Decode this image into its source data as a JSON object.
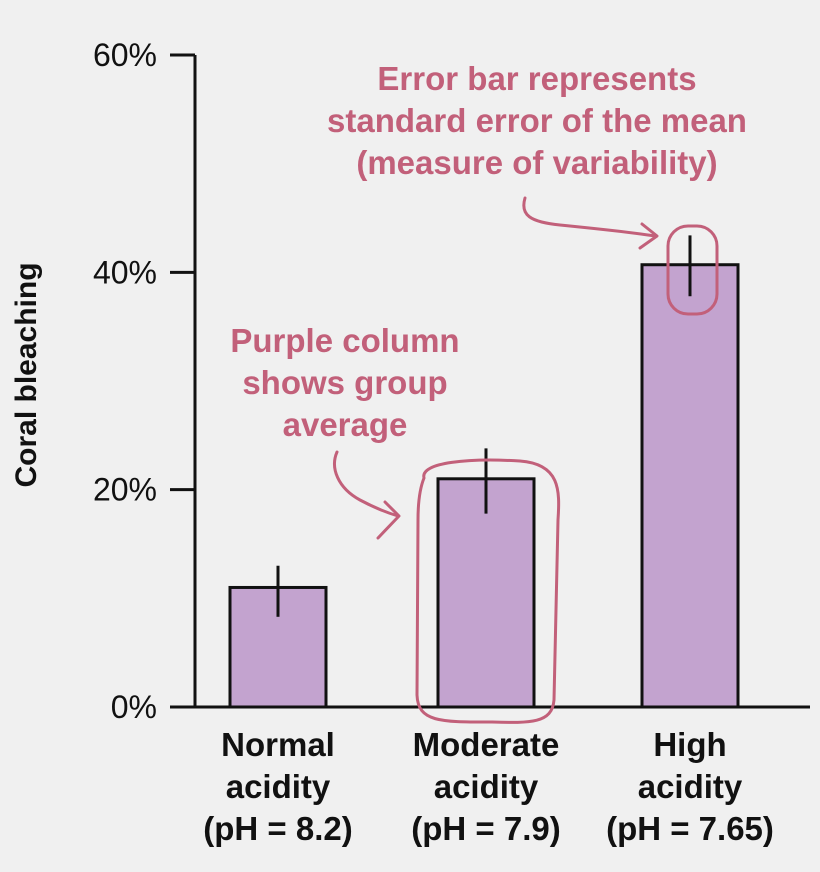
{
  "chart_data": {
    "type": "bar",
    "ylabel": "Coral bleaching",
    "ylim": [
      0,
      60
    ],
    "y_ticks": [
      "0%",
      "20%",
      "40%",
      "60%"
    ],
    "y_tick_values": [
      0,
      20,
      40,
      60
    ],
    "categories": [
      [
        "Normal",
        "acidity",
        "(pH = 8.2)"
      ],
      [
        "Moderate",
        "acidity",
        "(pH = 7.9)"
      ],
      [
        "High",
        "acidity",
        "(pH = 7.65)"
      ]
    ],
    "values": [
      11,
      21,
      40.7
    ],
    "error_low": [
      8.3,
      17.8,
      37.8
    ],
    "error_high": [
      13,
      23.8,
      43.4
    ],
    "annotations": {
      "error_bar_note": [
        "Error bar represents",
        "standard error of the mean",
        "(measure of variability)"
      ],
      "column_note": [
        "Purple column",
        "shows group",
        "average"
      ]
    },
    "colors": {
      "bar_fill": "#c3a3cf",
      "annotation": "#c2607a",
      "axis": "#111111"
    }
  }
}
